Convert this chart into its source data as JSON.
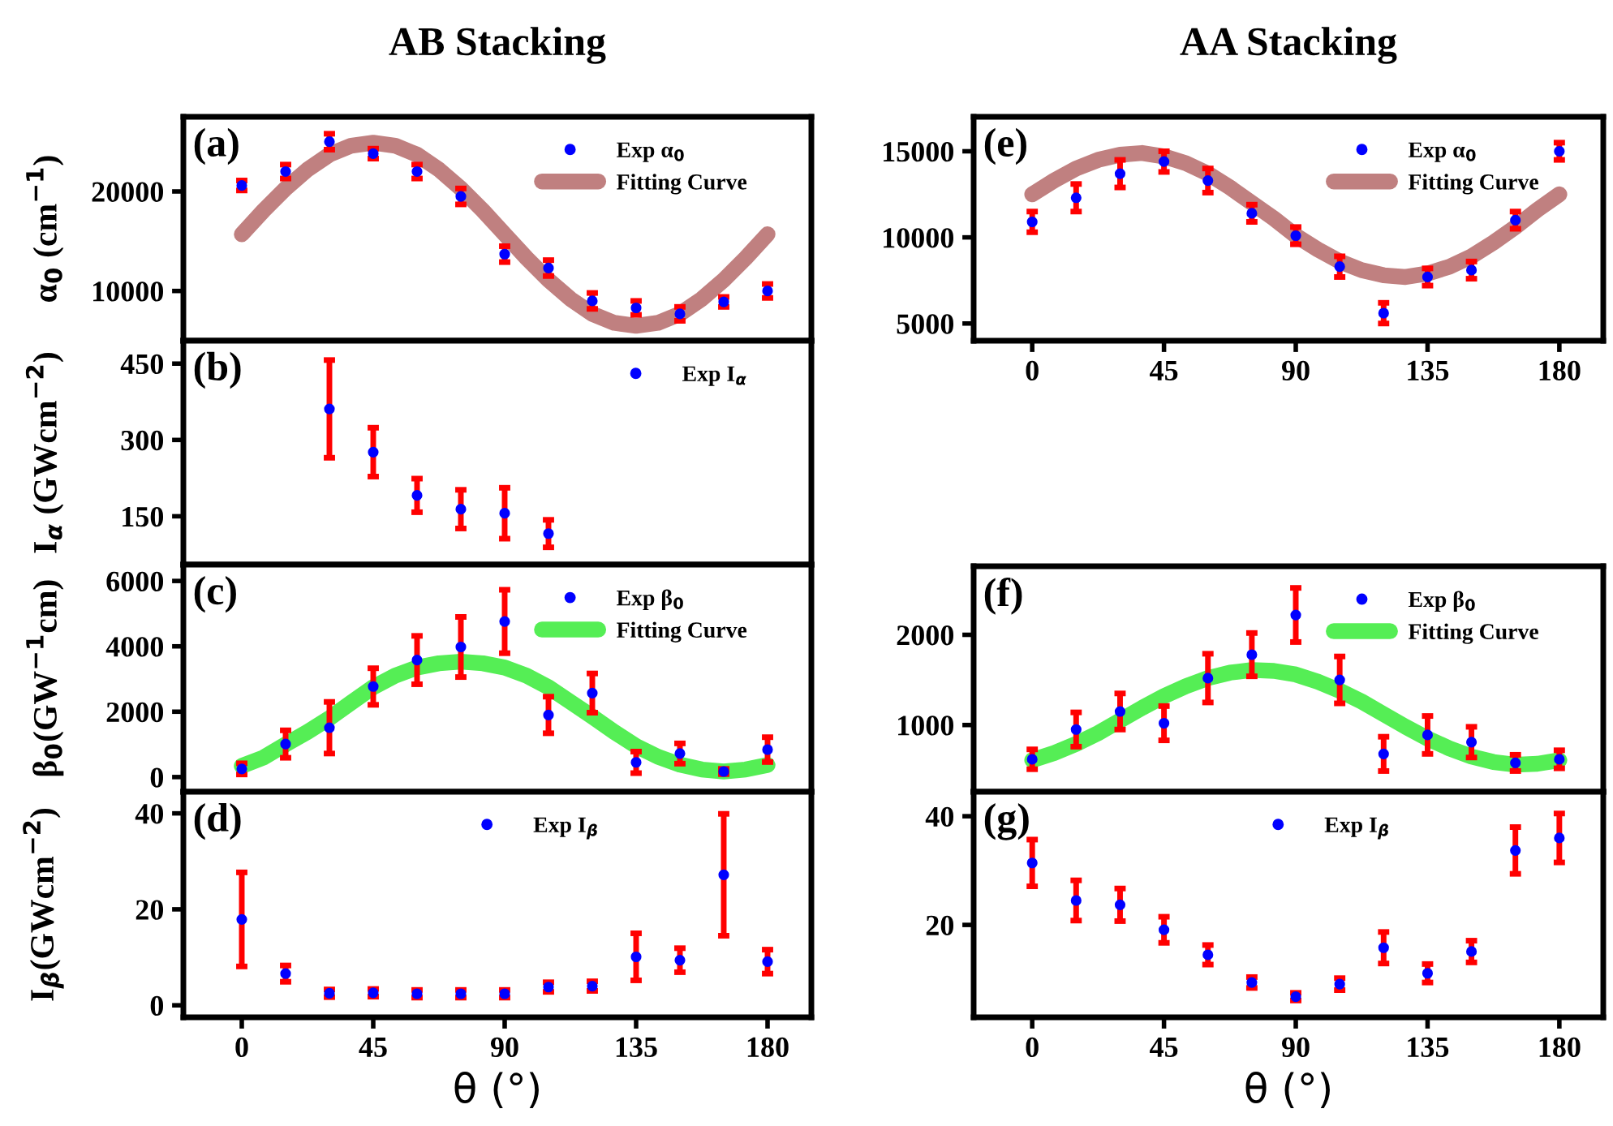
{
  "chart_data": [
    {
      "type": "scatter",
      "title": "AB Stacking",
      "ylabel": "α$_{0}$ (cm$^{−1}$)",
      "annotations": [
        "(a)"
      ],
      "xlim": [
        -20,
        195
      ],
      "xticks": [
        0,
        45,
        90,
        135,
        180
      ],
      "ylim": [
        5000,
        27500
      ],
      "yticks": [
        10000,
        20000
      ],
      "tick_labels": "y",
      "legend": "top right",
      "grid": false,
      "series": [
        {
          "name": "Exp α$_{0}$",
          "marker": "circle",
          "color": "#0000ff",
          "x": [
            0,
            15,
            30,
            45,
            60,
            75,
            90,
            105,
            120,
            135,
            150,
            165,
            180
          ],
          "values": [
            20600,
            22000,
            25000,
            23800,
            22000,
            19500,
            13700,
            12300,
            9000,
            8300,
            7700,
            8900,
            10000
          ],
          "errors": [
            500,
            700,
            800,
            500,
            700,
            800,
            800,
            800,
            800,
            700,
            700,
            500,
            700
          ]
        },
        {
          "name": "Fitting Curve",
          "type": "line",
          "color": "#c08080",
          "x": [
            0,
            7.5,
            15,
            22.5,
            30,
            37.5,
            45,
            52.5,
            60,
            67.5,
            75,
            82.5,
            90,
            97.5,
            105,
            112.5,
            120,
            127.5,
            135,
            142.5,
            150,
            157.5,
            165,
            172.5,
            180
          ],
          "values": [
            15700,
            18100,
            20300,
            22200,
            23700,
            24600,
            24900,
            24600,
            23700,
            22200,
            20300,
            18100,
            15700,
            13300,
            11100,
            9200,
            7700,
            6800,
            6500,
            6800,
            7700,
            9200,
            11100,
            13300,
            15700
          ]
        }
      ]
    },
    {
      "type": "scatter",
      "ylabel": "I$_{α}$ (GWcm$^{−2}$)",
      "annotations": [
        "(b)"
      ],
      "xlim": [
        -20,
        195
      ],
      "xticks": [
        0,
        45,
        90,
        135,
        180
      ],
      "ylim": [
        55,
        495
      ],
      "yticks": [
        150,
        300,
        450
      ],
      "tick_labels": "y",
      "legend": "top right",
      "grid": false,
      "series": [
        {
          "name": "Exp I$_{α}$",
          "marker": "circle",
          "color": "#0000ff",
          "x": [
            30,
            45,
            60,
            75,
            90,
            105
          ],
          "values": [
            361,
            276,
            191,
            164,
            156,
            116
          ],
          "errors": [
            96,
            48,
            33,
            38,
            50,
            27
          ]
        }
      ]
    },
    {
      "type": "scatter",
      "ylabel": "β$_{0}$(GW$^{−1}$cm)",
      "annotations": [
        "(c)"
      ],
      "xlim": [
        -20,
        195
      ],
      "xticks": [
        0,
        45,
        90,
        135,
        180
      ],
      "ylim": [
        -450,
        6500
      ],
      "yticks": [
        0,
        2000,
        4000,
        6000
      ],
      "tick_labels": "y",
      "legend": "top right",
      "grid": false,
      "series": [
        {
          "name": "Exp β$_{0}$",
          "marker": "circle",
          "color": "#0000ff",
          "x": [
            0,
            15,
            30,
            45,
            60,
            75,
            90,
            105,
            120,
            135,
            150,
            165,
            180
          ],
          "values": [
            250,
            1010,
            1510,
            2770,
            3580,
            3980,
            4760,
            1900,
            2570,
            450,
            720,
            170,
            840
          ],
          "errors": [
            170,
            420,
            790,
            560,
            740,
            920,
            970,
            560,
            600,
            330,
            310,
            80,
            380
          ]
        },
        {
          "name": "Fitting Curve",
          "type": "line",
          "color": "#55ee55",
          "x": [
            0,
            7.5,
            15,
            22.5,
            30,
            37.5,
            45,
            52.5,
            60,
            67.5,
            75,
            82.5,
            90,
            97.5,
            105,
            112.5,
            120,
            127.5,
            135,
            142.5,
            150,
            157.5,
            165,
            172.5,
            180
          ],
          "values": [
            340,
            600,
            1000,
            1380,
            1800,
            2280,
            2750,
            3100,
            3350,
            3480,
            3530,
            3480,
            3350,
            3100,
            2750,
            2300,
            1850,
            1380,
            950,
            620,
            380,
            230,
            170,
            230,
            370
          ]
        }
      ]
    },
    {
      "type": "scatter",
      "xlabel": "θ (°)",
      "ylabel": "I$_{β}$(GWcm$^{−2}$)",
      "annotations": [
        "(d)"
      ],
      "xlim": [
        -20,
        195
      ],
      "xticks": [
        0,
        45,
        90,
        135,
        180
      ],
      "ylim": [
        -2.5,
        44.5
      ],
      "yticks": [
        0,
        20,
        40
      ],
      "legend": "top",
      "grid": false,
      "series": [
        {
          "name": "Exp I$_{β}$",
          "marker": "circle",
          "color": "#0000ff",
          "x": [
            0,
            15,
            30,
            45,
            60,
            75,
            90,
            105,
            120,
            135,
            150,
            165,
            180
          ],
          "values": [
            17.9,
            6.6,
            2.5,
            2.6,
            2.4,
            2.4,
            2.4,
            3.8,
            4.0,
            10.1,
            9.4,
            27.2,
            9.1
          ],
          "errors": [
            9.8,
            1.7,
            0.8,
            0.8,
            0.8,
            0.8,
            0.8,
            1.0,
            1.0,
            4.9,
            2.5,
            12.7,
            2.5
          ]
        }
      ]
    },
    {
      "type": "scatter",
      "title": "AA Stacking",
      "annotations": [
        "(e)"
      ],
      "xlim": [
        -20,
        195
      ],
      "xticks": [
        0,
        45,
        90,
        135,
        180
      ],
      "ylim": [
        4000,
        17000
      ],
      "yticks": [
        5000,
        10000,
        15000
      ],
      "legend": "top right",
      "grid": false,
      "series": [
        {
          "name": "Exp α$_{0}$",
          "marker": "circle",
          "color": "#0000ff",
          "x": [
            0,
            15,
            30,
            45,
            60,
            75,
            90,
            105,
            120,
            135,
            150,
            165,
            180
          ],
          "values": [
            10900,
            12300,
            13700,
            14400,
            13300,
            11400,
            10100,
            8300,
            5600,
            7700,
            8100,
            11000,
            15000
          ],
          "errors": [
            600,
            800,
            800,
            600,
            700,
            500,
            500,
            600,
            600,
            500,
            500,
            500,
            500
          ]
        },
        {
          "name": "Fitting Curve",
          "type": "line",
          "color": "#c08080",
          "x": [
            0,
            7.5,
            15,
            22.5,
            30,
            37.5,
            45,
            52.5,
            60,
            67.5,
            75,
            82.5,
            90,
            97.5,
            105,
            112.5,
            120,
            127.5,
            135,
            142.5,
            150,
            157.5,
            165,
            172.5,
            180
          ],
          "values": [
            12500,
            13300,
            14000,
            14500,
            14800,
            14900,
            14700,
            14300,
            13700,
            12900,
            12000,
            11100,
            10100,
            9300,
            8600,
            8100,
            7800,
            7700,
            7900,
            8300,
            8900,
            9700,
            10600,
            11600,
            12500
          ]
        }
      ]
    },
    {
      "type": "scatter",
      "annotations": [
        "(f)"
      ],
      "xlim": [
        -20,
        195
      ],
      "xticks": [
        0,
        45,
        90,
        135,
        180
      ],
      "ylim": [
        260,
        2760
      ],
      "yticks": [
        1000,
        2000
      ],
      "tick_labels": "y",
      "legend": "top right",
      "grid": false,
      "series": [
        {
          "name": "Exp β$_{0}$",
          "marker": "circle",
          "color": "#0000ff",
          "x": [
            0,
            15,
            30,
            45,
            60,
            75,
            90,
            105,
            120,
            135,
            150,
            165,
            180
          ],
          "values": [
            620,
            950,
            1150,
            1020,
            1520,
            1780,
            2220,
            1500,
            680,
            890,
            810,
            580,
            620
          ],
          "errors": [
            110,
            190,
            200,
            190,
            270,
            240,
            300,
            260,
            190,
            210,
            170,
            90,
            100
          ]
        },
        {
          "name": "Fitting Curve",
          "type": "line",
          "color": "#55ee55",
          "x": [
            0,
            7.5,
            15,
            22.5,
            30,
            37.5,
            45,
            52.5,
            60,
            67.5,
            75,
            82.5,
            90,
            97.5,
            105,
            112.5,
            120,
            127.5,
            135,
            142.5,
            150,
            157.5,
            165,
            172.5,
            180
          ],
          "values": [
            610,
            690,
            790,
            910,
            1050,
            1190,
            1320,
            1430,
            1520,
            1580,
            1610,
            1600,
            1560,
            1480,
            1380,
            1260,
            1120,
            980,
            850,
            740,
            650,
            590,
            560,
            570,
            610
          ]
        }
      ]
    },
    {
      "type": "scatter",
      "xlabel": "θ (°)",
      "annotations": [
        "(g)"
      ],
      "xlim": [
        -20,
        195
      ],
      "xticks": [
        0,
        45,
        90,
        135,
        180
      ],
      "ylim": [
        3,
        44.5
      ],
      "yticks": [
        20,
        40
      ],
      "legend": "top",
      "grid": false,
      "series": [
        {
          "name": "Exp I$_{β}$",
          "marker": "circle",
          "color": "#0000ff",
          "x": [
            0,
            15,
            30,
            45,
            60,
            75,
            90,
            105,
            120,
            135,
            150,
            165,
            180
          ],
          "values": [
            31.4,
            24.5,
            23.7,
            19.1,
            14.5,
            9.4,
            6.8,
            9.1,
            15.8,
            11.1,
            15.1,
            33.7,
            36.0
          ],
          "errors": [
            4.3,
            3.7,
            3.0,
            2.4,
            1.8,
            1.0,
            0.7,
            1.1,
            2.9,
            1.7,
            2.0,
            4.3,
            4.5
          ]
        }
      ]
    }
  ]
}
